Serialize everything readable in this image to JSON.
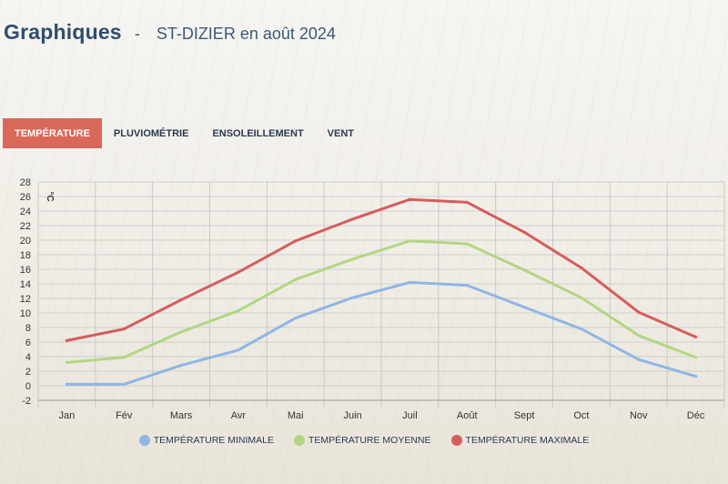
{
  "header": {
    "title": "Graphiques",
    "separator": "-",
    "subtitle": "ST-DIZIER en août 2024"
  },
  "tabs": [
    {
      "label": "TEMPÉRATURE",
      "active": true
    },
    {
      "label": "PLUVIOMÉTRIE",
      "active": false
    },
    {
      "label": "ENSOLEILLEMENT",
      "active": false
    },
    {
      "label": "VENT",
      "active": false
    }
  ],
  "colors": {
    "active_tab": "#d9685a",
    "min": "#8fb6e4",
    "mean": "#b3d682",
    "max": "#d65d5d",
    "grid": "#cfcfcf"
  },
  "chart_data": {
    "type": "line",
    "categories": [
      "Jan",
      "Fév",
      "Mars",
      "Avr",
      "Mai",
      "Juin",
      "Juil",
      "Août",
      "Sept",
      "Oct",
      "Nov",
      "Déc"
    ],
    "series": [
      {
        "name": "TEMPÉRATURE MINIMALE",
        "color": "#8fb6e4",
        "values": [
          0.2,
          0.2,
          2.8,
          4.9,
          9.3,
          12.1,
          14.2,
          13.8,
          10.8,
          7.8,
          3.6,
          1.3
        ]
      },
      {
        "name": "TEMPÉRATURE MOYENNE",
        "color": "#b3d682",
        "values": [
          3.2,
          3.9,
          7.4,
          10.3,
          14.6,
          17.4,
          19.9,
          19.5,
          15.9,
          12.1,
          6.9,
          3.9
        ]
      },
      {
        "name": "TEMPÉRATURE MAXIMALE",
        "color": "#d65d5d",
        "values": [
          6.2,
          7.8,
          11.8,
          15.6,
          19.9,
          22.9,
          25.6,
          25.2,
          21.1,
          16.2,
          10.1,
          6.7
        ]
      }
    ],
    "ylim": [
      -2,
      28
    ],
    "yticks": [
      -2,
      0,
      2,
      4,
      6,
      8,
      10,
      12,
      14,
      16,
      18,
      20,
      22,
      24,
      26,
      28
    ],
    "ylabel": "°C",
    "xlabel": "",
    "grid": true,
    "legend": "bottom"
  }
}
